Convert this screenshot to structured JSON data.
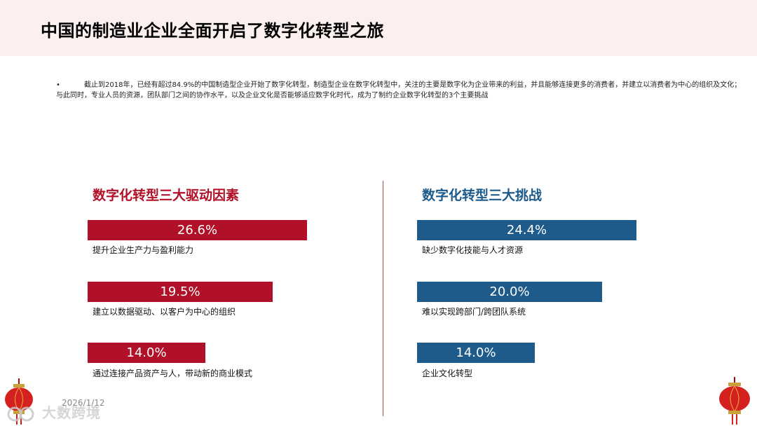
{
  "page": {
    "title": "中国的制造业企业全面开启了数字化转型之旅",
    "intro_bullet": "•",
    "intro_text": "截止到2018年，已经有超过84.9%的中国制造型企业开始了数字化转型，制造型企业在数字化转型中，关注的主要是数字化为企业带来的利益，并且能够连接更多的消费者，并建立以消费者为中心的组织及文化；与此同时，专业人员的资源，团队部门之间的协作水平，以及企业文化是否能够适应数字化时代，成为了制约企业数字化转型的3个主要挑战",
    "date": "2026/1/12",
    "watermark": "大数跨境"
  },
  "left": {
    "title": "数字化转型三大驱动因素",
    "items": [
      {
        "value_label": "26.6%",
        "value": 26.6,
        "label": "提升企业生产力与盈利能力"
      },
      {
        "value_label": "19.5%",
        "value": 19.5,
        "label": "建立以数据驱动、以客户为中心的组织"
      },
      {
        "value_label": "14.0%",
        "value": 14.0,
        "label": "通过连接产品资产与人，带动新的商业模式"
      }
    ]
  },
  "right": {
    "title": "数字化转型三大挑战",
    "items": [
      {
        "value_label": "24.4%",
        "value": 24.4,
        "label": "缺少数字化技能与人才资源"
      },
      {
        "value_label": "20.0%",
        "value": 20.0,
        "label": "难以实现跨部门/跨团队系统"
      },
      {
        "value_label": "14.0%",
        "value": 14.0,
        "label": "企业文化转型"
      }
    ]
  },
  "colors": {
    "accent_red": "#b11128",
    "accent_blue": "#1e5b8a",
    "header_bg": "#fbf0ef"
  },
  "icons": [
    "lantern-icon",
    "watermark-logo-icon"
  ]
}
